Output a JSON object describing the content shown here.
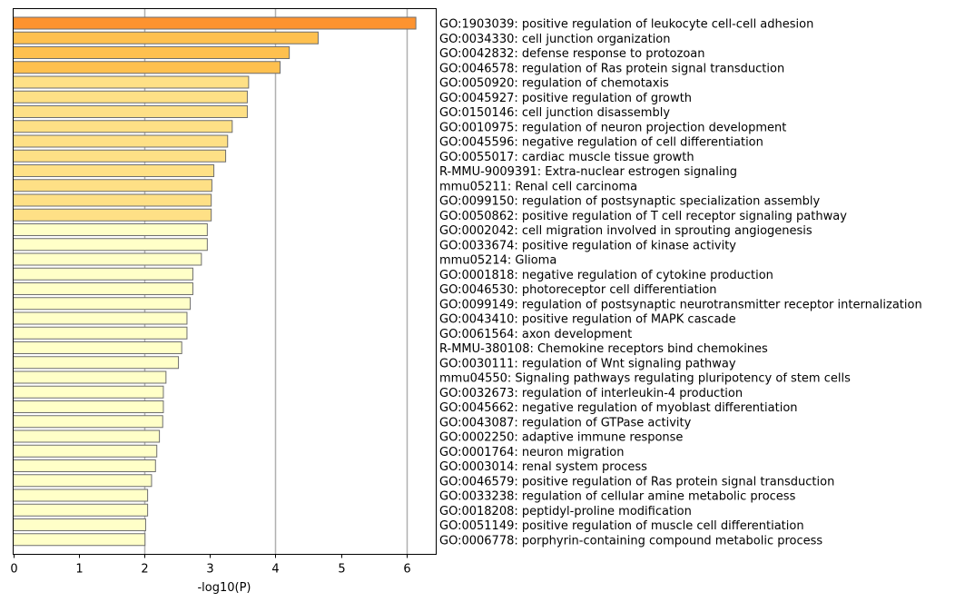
{
  "chart_data": {
    "type": "bar",
    "orientation": "horizontal",
    "xlabel": "-log10(P)",
    "xlim": [
      0,
      6.45
    ],
    "xticks": [
      "0",
      "1",
      "2",
      "3",
      "4",
      "5",
      "6"
    ],
    "grid": "vertical lines at 2, 4, 6",
    "categories": [
      "GO:1903039: positive regulation of leukocyte cell-cell adhesion",
      "GO:0034330: cell junction organization",
      "GO:0042832: defense response to protozoan",
      "GO:0046578: regulation of Ras protein signal transduction",
      "GO:0050920: regulation of chemotaxis",
      "GO:0045927: positive regulation of growth",
      "GO:0150146: cell junction disassembly",
      "GO:0010975: regulation of neuron projection development",
      "GO:0045596: negative regulation of cell differentiation",
      "GO:0055017: cardiac muscle tissue growth",
      "R-MMU-9009391: Extra-nuclear estrogen signaling",
      "mmu05211: Renal cell carcinoma",
      "GO:0099150: regulation of postsynaptic specialization assembly",
      "GO:0050862: positive regulation of T cell receptor signaling pathway",
      "GO:0002042: cell migration involved in sprouting angiogenesis",
      "GO:0033674: positive regulation of kinase activity",
      "mmu05214: Glioma",
      "GO:0001818: negative regulation of cytokine production",
      "GO:0046530: photoreceptor cell differentiation",
      "GO:0099149: regulation of postsynaptic neurotransmitter receptor internalization",
      "GO:0043410: positive regulation of MAPK cascade",
      "GO:0061564: axon development",
      "R-MMU-380108: Chemokine receptors bind chemokines",
      "GO:0030111: regulation of Wnt signaling pathway",
      "mmu04550: Signaling pathways regulating pluripotency of stem cells",
      "GO:0032673: regulation of interleukin-4 production",
      "GO:0045662: negative regulation of myoblast differentiation",
      "GO:0043087: regulation of GTPase activity",
      "GO:0002250: adaptive immune response",
      "GO:0001764: neuron migration",
      "GO:0003014: renal system process",
      "GO:0046579: positive regulation of Ras protein signal transduction",
      "GO:0033238: regulation of cellular amine metabolic process",
      "GO:0018208: peptidyl-proline modification",
      "GO:0051149: positive regulation of muscle cell differentiation",
      "GO:0006778: porphyrin-containing compound metabolic process"
    ],
    "values": [
      6.14,
      4.65,
      4.21,
      4.07,
      3.59,
      3.57,
      3.57,
      3.34,
      3.27,
      3.24,
      3.06,
      3.03,
      3.02,
      3.02,
      2.96,
      2.96,
      2.87,
      2.74,
      2.74,
      2.7,
      2.65,
      2.65,
      2.57,
      2.52,
      2.33,
      2.29,
      2.29,
      2.28,
      2.23,
      2.19,
      2.17,
      2.11,
      2.05,
      2.05,
      2.02,
      2.01
    ],
    "colors": [
      "#fd9330",
      "#fec04f",
      "#fec04f",
      "#fec04f",
      "#fee086",
      "#fee086",
      "#fee086",
      "#fee086",
      "#fee086",
      "#fee086",
      "#fee086",
      "#fee086",
      "#fee086",
      "#fee086",
      "#ffffc8",
      "#ffffc8",
      "#ffffc8",
      "#ffffc8",
      "#ffffc8",
      "#ffffc8",
      "#ffffc8",
      "#ffffc8",
      "#ffffc8",
      "#ffffc8",
      "#ffffc8",
      "#ffffc8",
      "#ffffc8",
      "#ffffc8",
      "#ffffc8",
      "#ffffc8",
      "#ffffc8",
      "#ffffc8",
      "#ffffc8",
      "#ffffc8",
      "#ffffc8",
      "#ffffc8"
    ],
    "bar_edge_color": "#6e6e6e",
    "grid_color": "#b0b0b0"
  }
}
